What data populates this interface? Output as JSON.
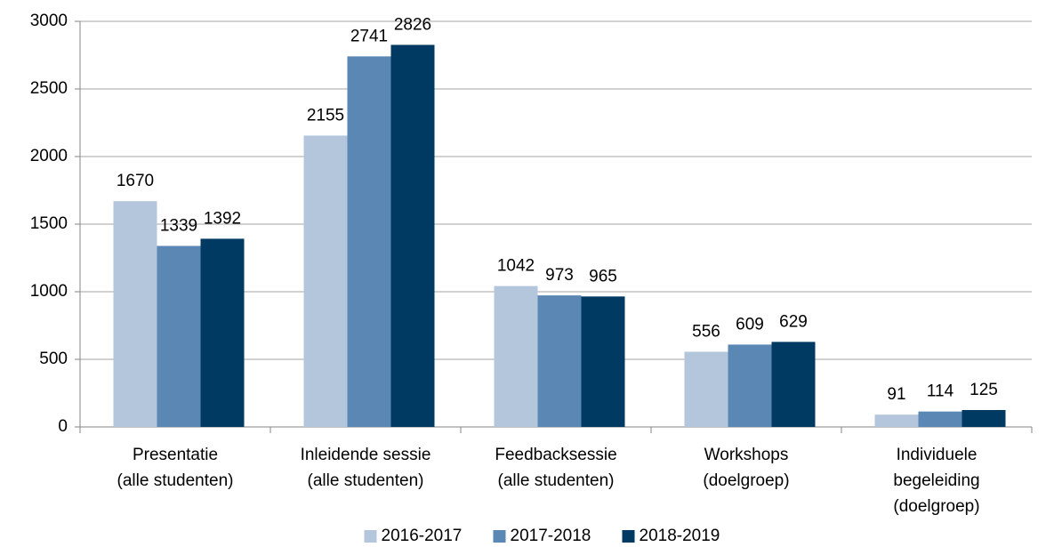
{
  "chart_data": {
    "type": "bar",
    "categories": [
      "Presentatie\n(alle studenten)",
      "Inleidende sessie\n(alle studenten)",
      "Feedbacksessie\n(alle studenten)",
      "Workshops\n(doelgroep)",
      "Individuele\nbegeleiding\n(doelgroep)"
    ],
    "series": [
      {
        "name": "2016-2017",
        "color": "#b3c6dc",
        "values": [
          1670,
          2155,
          1042,
          556,
          91
        ]
      },
      {
        "name": "2017-2018",
        "color": "#5b87b5",
        "values": [
          1339,
          2741,
          973,
          609,
          114
        ]
      },
      {
        "name": "2018-2019",
        "color": "#003a63",
        "values": [
          1392,
          2826,
          965,
          629,
          125
        ]
      }
    ],
    "ylim": [
      0,
      3000
    ],
    "yticks": [
      0,
      500,
      1000,
      1500,
      2000,
      2500,
      3000
    ],
    "grid": true,
    "legend": "bottom"
  }
}
